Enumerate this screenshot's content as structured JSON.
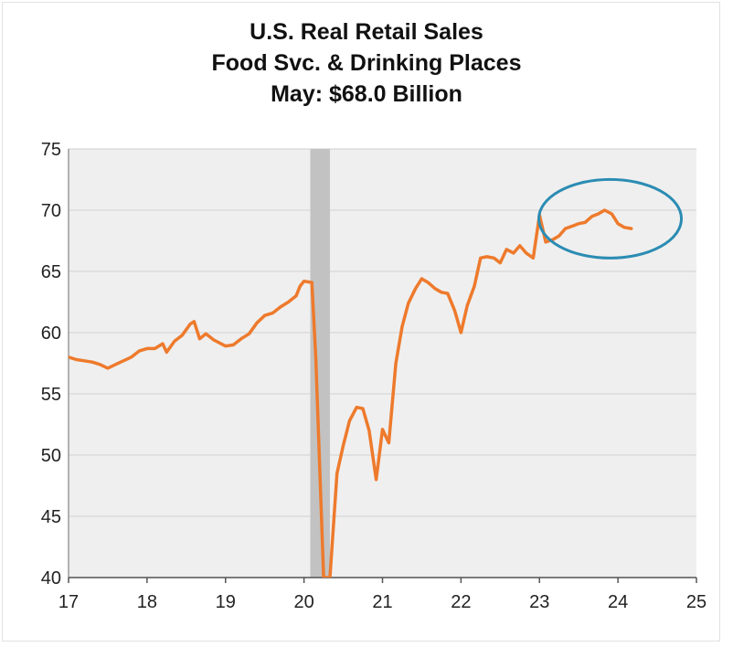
{
  "chart_data": {
    "type": "line",
    "title": "U.S. Real Retail Sales",
    "subtitle": "Food Svc. & Drinking Places",
    "subtitle2": "May: $68.0 Billion",
    "xlabel": "",
    "ylabel": "",
    "xlim": [
      17,
      25
    ],
    "ylim": [
      40,
      75
    ],
    "x_ticks": [
      "17",
      "18",
      "19",
      "20",
      "21",
      "22",
      "23",
      "24",
      "25"
    ],
    "y_ticks": [
      "75",
      "70",
      "65",
      "60",
      "55",
      "50",
      "45",
      "40"
    ],
    "grid": "horizontal",
    "recession_band": [
      20.08,
      20.33
    ],
    "highlight_circle_center": [
      23.9,
      69.3
    ],
    "colors": {
      "line": "#ee7a2c",
      "band": "#c2c2c2",
      "circle": "#2b8cb3",
      "plot_bg": "#efefef"
    },
    "series": [
      {
        "name": "Food Svc. & Drinking Places",
        "points": [
          [
            17.0,
            58.0
          ],
          [
            17.1,
            57.8
          ],
          [
            17.2,
            57.7
          ],
          [
            17.3,
            57.6
          ],
          [
            17.4,
            57.4
          ],
          [
            17.5,
            57.1
          ],
          [
            17.6,
            57.4
          ],
          [
            17.7,
            57.7
          ],
          [
            17.8,
            58.0
          ],
          [
            17.9,
            58.5
          ],
          [
            18.0,
            58.7
          ],
          [
            18.1,
            58.7
          ],
          [
            18.2,
            59.1
          ],
          [
            18.25,
            58.4
          ],
          [
            18.35,
            59.3
          ],
          [
            18.45,
            59.8
          ],
          [
            18.55,
            60.7
          ],
          [
            18.6,
            60.9
          ],
          [
            18.67,
            59.5
          ],
          [
            18.75,
            59.9
          ],
          [
            18.85,
            59.4
          ],
          [
            19.0,
            58.9
          ],
          [
            19.1,
            59.0
          ],
          [
            19.2,
            59.5
          ],
          [
            19.3,
            59.9
          ],
          [
            19.4,
            60.8
          ],
          [
            19.5,
            61.4
          ],
          [
            19.6,
            61.6
          ],
          [
            19.7,
            62.1
          ],
          [
            19.8,
            62.5
          ],
          [
            19.9,
            63.0
          ],
          [
            19.95,
            63.8
          ],
          [
            20.0,
            64.2
          ],
          [
            20.1,
            64.1
          ],
          [
            20.15,
            58.0
          ],
          [
            20.2,
            49.0
          ],
          [
            20.25,
            40.0
          ],
          [
            20.33,
            40.0
          ],
          [
            20.42,
            48.5
          ],
          [
            20.5,
            50.8
          ],
          [
            20.58,
            52.8
          ],
          [
            20.67,
            53.9
          ],
          [
            20.75,
            53.8
          ],
          [
            20.83,
            52.0
          ],
          [
            20.92,
            48.0
          ],
          [
            21.0,
            52.1
          ],
          [
            21.08,
            51.0
          ],
          [
            21.17,
            57.5
          ],
          [
            21.25,
            60.5
          ],
          [
            21.33,
            62.4
          ],
          [
            21.42,
            63.6
          ],
          [
            21.5,
            64.4
          ],
          [
            21.58,
            64.1
          ],
          [
            21.67,
            63.6
          ],
          [
            21.75,
            63.3
          ],
          [
            21.83,
            63.2
          ],
          [
            21.92,
            61.8
          ],
          [
            22.0,
            60.0
          ],
          [
            22.08,
            62.2
          ],
          [
            22.17,
            63.8
          ],
          [
            22.25,
            66.1
          ],
          [
            22.33,
            66.2
          ],
          [
            22.42,
            66.1
          ],
          [
            22.5,
            65.7
          ],
          [
            22.58,
            66.8
          ],
          [
            22.67,
            66.5
          ],
          [
            22.75,
            67.1
          ],
          [
            22.83,
            66.5
          ],
          [
            22.92,
            66.1
          ],
          [
            23.0,
            69.6
          ],
          [
            23.08,
            67.4
          ],
          [
            23.17,
            67.6
          ],
          [
            23.25,
            67.9
          ],
          [
            23.33,
            68.5
          ],
          [
            23.42,
            68.7
          ],
          [
            23.5,
            68.9
          ],
          [
            23.58,
            69.0
          ],
          [
            23.67,
            69.5
          ],
          [
            23.75,
            69.7
          ],
          [
            23.83,
            70.0
          ],
          [
            23.92,
            69.7
          ],
          [
            24.0,
            68.9
          ],
          [
            24.08,
            68.6
          ],
          [
            24.17,
            68.5
          ]
        ]
      }
    ]
  }
}
